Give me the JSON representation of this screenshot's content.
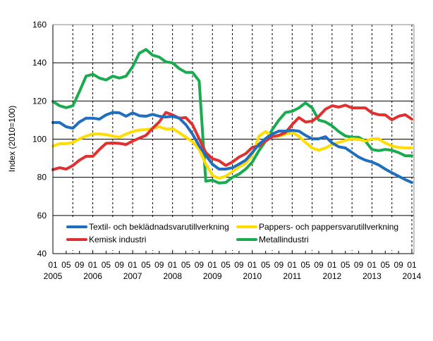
{
  "chart_data": {
    "type": "line",
    "title": "",
    "xlabel": "",
    "ylabel": "Index (2010=100)",
    "ylim": [
      40,
      160
    ],
    "yticks": [
      40,
      60,
      80,
      100,
      120,
      140,
      160
    ],
    "xlim": [
      "2005-01",
      "2014-01"
    ],
    "x_tick_labels": [
      {
        "month": "01",
        "year": "2005"
      },
      {
        "month": "05",
        "year": ""
      },
      {
        "month": "09",
        "year": ""
      },
      {
        "month": "01",
        "year": "2006"
      },
      {
        "month": "05",
        "year": ""
      },
      {
        "month": "09",
        "year": ""
      },
      {
        "month": "01",
        "year": "2007"
      },
      {
        "month": "05",
        "year": ""
      },
      {
        "month": "09",
        "year": ""
      },
      {
        "month": "01",
        "year": "2008"
      },
      {
        "month": "05",
        "year": ""
      },
      {
        "month": "09",
        "year": ""
      },
      {
        "month": "01",
        "year": "2009"
      },
      {
        "month": "05",
        "year": ""
      },
      {
        "month": "09",
        "year": ""
      },
      {
        "month": "01",
        "year": "2010"
      },
      {
        "month": "05",
        "year": ""
      },
      {
        "month": "09",
        "year": ""
      },
      {
        "month": "01",
        "year": "2011"
      },
      {
        "month": "05",
        "year": ""
      },
      {
        "month": "09",
        "year": ""
      },
      {
        "month": "01",
        "year": "2012"
      },
      {
        "month": "05",
        "year": ""
      },
      {
        "month": "09",
        "year": ""
      },
      {
        "month": "01",
        "year": "2013"
      },
      {
        "month": "05",
        "year": ""
      },
      {
        "month": "09",
        "year": ""
      },
      {
        "month": "01",
        "year": "2014"
      }
    ],
    "grid": {
      "horizontal": "solid",
      "vertical": "dashed"
    },
    "legend_placement": "bottom-inside",
    "x": [
      "2005-01",
      "2005-03",
      "2005-05",
      "2005-07",
      "2005-09",
      "2005-11",
      "2006-01",
      "2006-03",
      "2006-05",
      "2006-07",
      "2006-09",
      "2006-11",
      "2007-01",
      "2007-03",
      "2007-05",
      "2007-07",
      "2007-09",
      "2007-11",
      "2008-01",
      "2008-03",
      "2008-05",
      "2008-07",
      "2008-09",
      "2008-11",
      "2009-01",
      "2009-03",
      "2009-05",
      "2009-07",
      "2009-09",
      "2009-11",
      "2010-01",
      "2010-03",
      "2010-05",
      "2010-07",
      "2010-09",
      "2010-11",
      "2011-01",
      "2011-03",
      "2011-05",
      "2011-07",
      "2011-09",
      "2011-11",
      "2012-01",
      "2012-03",
      "2012-05",
      "2012-07",
      "2012-09",
      "2012-11",
      "2013-01",
      "2013-03",
      "2013-05",
      "2013-07",
      "2013-09",
      "2013-11",
      "2014-01"
    ],
    "series": [
      {
        "name": "Textil- och beklädnadsvarutillverkning",
        "color": "#1f6ebf",
        "values": [
          108.7,
          108.7,
          106.5,
          105.7,
          109,
          111,
          111,
          110.5,
          112.7,
          114,
          113.8,
          112,
          113.8,
          112.3,
          112,
          113,
          112,
          111.6,
          112,
          111,
          107.6,
          102.7,
          96.5,
          91.6,
          86.9,
          84.3,
          84.3,
          85,
          86.9,
          89,
          93,
          97.3,
          100.3,
          102.7,
          104.2,
          104.2,
          104.6,
          104.2,
          102,
          100.2,
          100.2,
          101.3,
          98,
          96,
          95.4,
          93,
          90.6,
          89,
          88,
          86.5,
          84.3,
          82.4,
          80.6,
          78.8,
          77.3
        ]
      },
      {
        "name": "Pappers- och pappersvarutillverkning",
        "color": "#ffdd00",
        "values": [
          96.4,
          97.6,
          97.6,
          98.3,
          100.2,
          101.6,
          102.7,
          102.7,
          102.4,
          101.6,
          101,
          102.7,
          104,
          104.8,
          105,
          105.6,
          106.5,
          105.3,
          105.5,
          103.4,
          101,
          98.7,
          94.6,
          87,
          81,
          79.5,
          80.6,
          83,
          85.4,
          87.3,
          91.6,
          101.6,
          104,
          101.6,
          101.6,
          102.7,
          103.5,
          101.5,
          98.3,
          95.4,
          94.2,
          95.4,
          97.2,
          98.3,
          99.4,
          100.2,
          99.8,
          99,
          100.2,
          100.2,
          98,
          96.4,
          95.7,
          95.4,
          95.4
        ]
      },
      {
        "name": "Kemisk industri",
        "color": "#e03030",
        "values": [
          84,
          85,
          84.3,
          86.2,
          89,
          91,
          91,
          94.6,
          97.8,
          98,
          97.8,
          97.2,
          99,
          100.5,
          102,
          105.7,
          109,
          114,
          112.7,
          111,
          111.3,
          107.6,
          100.2,
          93,
          89.8,
          88.7,
          86.2,
          88,
          90.6,
          92.4,
          95.7,
          96.4,
          99,
          101.3,
          102,
          103.5,
          107.6,
          111.3,
          109,
          109.4,
          112,
          115.7,
          117.5,
          116.8,
          117.8,
          116.4,
          116.4,
          116.4,
          113.8,
          112.8,
          112.7,
          110.1,
          112,
          112.8,
          110.5
        ]
      },
      {
        "name": "Metallindustri",
        "color": "#1aaa50",
        "values": [
          119.8,
          117.5,
          116.5,
          117.5,
          125,
          133,
          134,
          132,
          131,
          133,
          132,
          133,
          138,
          145,
          147,
          144,
          143,
          140.5,
          140,
          137,
          135,
          135,
          130.5,
          78,
          78.5,
          77,
          77.3,
          80,
          81.7,
          84.3,
          88,
          94,
          99,
          105,
          110,
          114,
          114.6,
          116.4,
          119,
          116.4,
          110,
          109,
          107,
          104,
          101.7,
          101,
          101,
          99,
          94.6,
          94,
          94.6,
          94.2,
          93,
          91.3,
          91.3
        ]
      }
    ]
  }
}
